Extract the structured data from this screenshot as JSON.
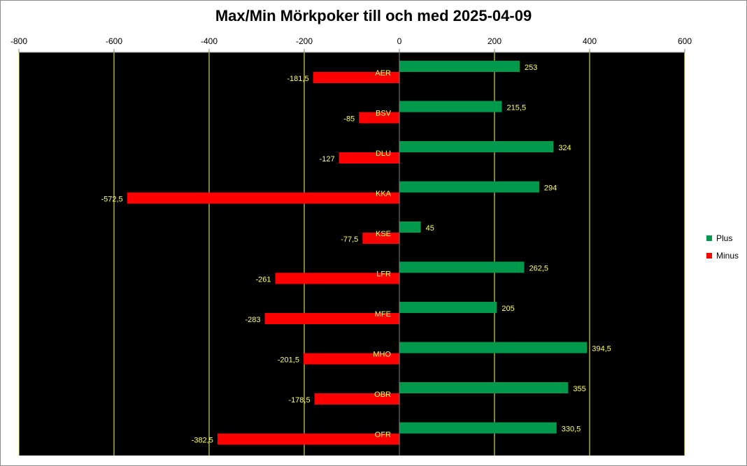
{
  "chart_data": {
    "type": "bar",
    "orientation": "horizontal",
    "title": "Max/Min Mörkpoker till och med 2025-04-09",
    "xlabel": "",
    "ylabel": "",
    "xlim": [
      -800,
      600
    ],
    "x_ticks": [
      -800,
      -600,
      -400,
      -200,
      0,
      200,
      400,
      600
    ],
    "x_tick_labels": [
      "-800",
      "-600",
      "-400",
      "-200",
      "0",
      "200",
      "400",
      "600"
    ],
    "grid": true,
    "plot_background": "#000000",
    "grid_color": "#ffff66",
    "label_color": "#ffff66",
    "legend_position": "right",
    "categories": [
      "AER",
      "BSV",
      "DLU",
      "KKA",
      "KSE",
      "LFR",
      "MFE",
      "MHO",
      "OBR",
      "OFR"
    ],
    "series": [
      {
        "name": "Plus",
        "color": "#00994c",
        "values": [
          253,
          215.5,
          324,
          294,
          45,
          262.5,
          205,
          394.5,
          355,
          330.5
        ],
        "labels": [
          "253",
          "215,5",
          "324",
          "294",
          "45",
          "262,5",
          "205",
          "394,5",
          "355",
          "330,5"
        ]
      },
      {
        "name": "Minus",
        "color": "#ff0000",
        "values": [
          -181.5,
          -85,
          -127,
          -572.5,
          -77.5,
          -261,
          -283,
          -201.5,
          -178.5,
          -382.5
        ],
        "labels": [
          "-181,5",
          "-85",
          "-127",
          "-572,5",
          "-77,5",
          "-261",
          "-283",
          "-201,5",
          "-178,5",
          "-382,5"
        ]
      }
    ]
  }
}
